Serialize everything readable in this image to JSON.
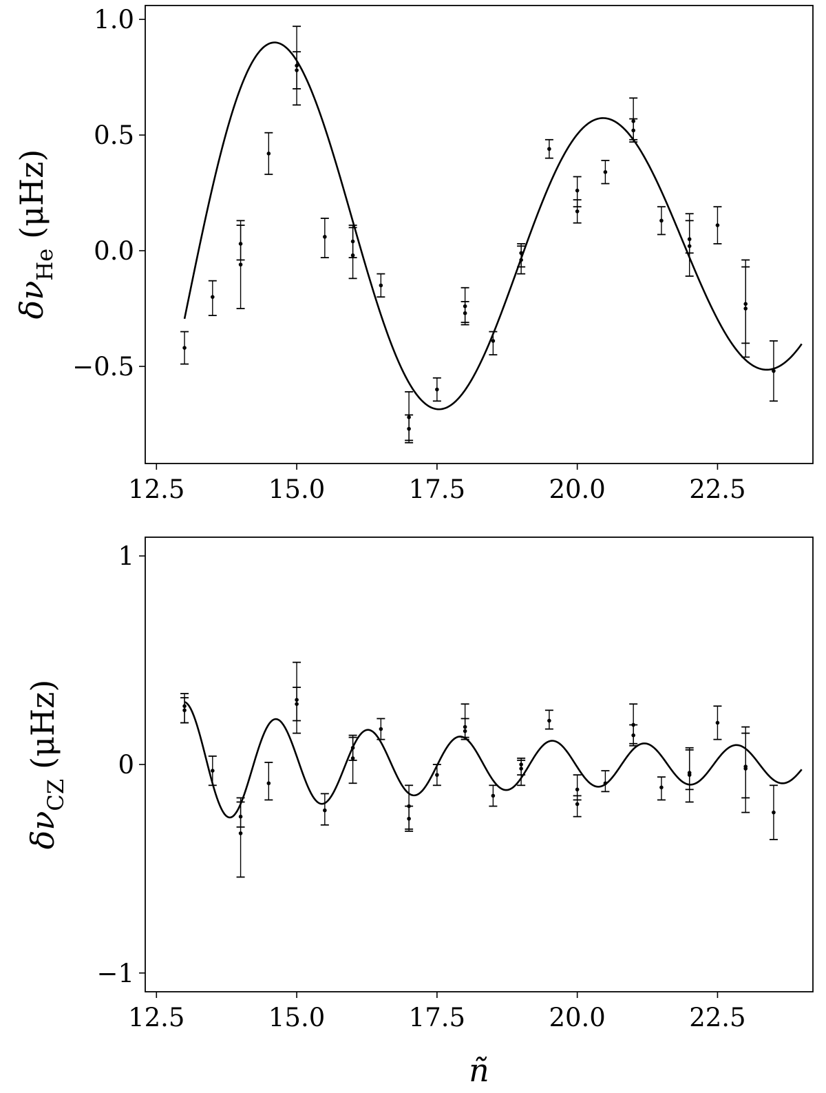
{
  "chart_data": [
    {
      "type": "scatter",
      "panel": "top",
      "xlabel": "",
      "ylabel": "δν_He (μHz)",
      "ylabel_parts": {
        "main": "δν",
        "sub": "He",
        "unit": "(μHz)"
      },
      "xlim": [
        12.3,
        24.2
      ],
      "ylim": [
        -0.92,
        1.06
      ],
      "xticks": [
        12.5,
        15.0,
        17.5,
        20.0,
        22.5
      ],
      "xtick_labels": [
        "12.5",
        "15.0",
        "17.5",
        "20.0",
        "22.5"
      ],
      "yticks": [
        -0.5,
        0.0,
        0.5,
        1.0
      ],
      "ytick_labels": [
        "−0.5",
        "0.0",
        "0.5",
        "1.0"
      ],
      "grid": false,
      "fit": {
        "kind": "line",
        "x_range": [
          13.0,
          24.0
        ]
      },
      "series": [
        {
          "kind": "errorbar",
          "points": [
            {
              "x": 13.0,
              "y": -0.42,
              "lo": -0.49,
              "hi": -0.35
            },
            {
              "x": 13.5,
              "y": -0.2,
              "lo": -0.28,
              "hi": -0.13
            },
            {
              "x": 14.0,
              "y": 0.03,
              "lo": -0.04,
              "hi": 0.13
            },
            {
              "x": 14.0,
              "y": -0.06,
              "lo": -0.25,
              "hi": 0.11
            },
            {
              "x": 14.5,
              "y": 0.42,
              "lo": 0.33,
              "hi": 0.51
            },
            {
              "x": 15.0,
              "y": 0.8,
              "lo": 0.63,
              "hi": 0.97
            },
            {
              "x": 15.0,
              "y": 0.78,
              "lo": 0.7,
              "hi": 0.86
            },
            {
              "x": 15.5,
              "y": 0.06,
              "lo": -0.03,
              "hi": 0.14
            },
            {
              "x": 16.0,
              "y": 0.04,
              "lo": -0.03,
              "hi": 0.11
            },
            {
              "x": 16.0,
              "y": -0.02,
              "lo": -0.12,
              "hi": 0.1
            },
            {
              "x": 16.5,
              "y": -0.15,
              "lo": -0.2,
              "hi": -0.1
            },
            {
              "x": 17.0,
              "y": -0.72,
              "lo": -0.82,
              "hi": -0.61
            },
            {
              "x": 17.0,
              "y": -0.77,
              "lo": -0.83,
              "hi": -0.71
            },
            {
              "x": 17.5,
              "y": -0.6,
              "lo": -0.65,
              "hi": -0.55
            },
            {
              "x": 18.0,
              "y": -0.24,
              "lo": -0.31,
              "hi": -0.16
            },
            {
              "x": 18.0,
              "y": -0.27,
              "lo": -0.32,
              "hi": -0.22
            },
            {
              "x": 18.5,
              "y": -0.39,
              "lo": -0.45,
              "hi": -0.35
            },
            {
              "x": 19.0,
              "y": -0.01,
              "lo": -0.07,
              "hi": 0.03
            },
            {
              "x": 19.0,
              "y": -0.04,
              "lo": -0.1,
              "hi": 0.02
            },
            {
              "x": 19.5,
              "y": 0.44,
              "lo": 0.4,
              "hi": 0.48
            },
            {
              "x": 20.0,
              "y": 0.26,
              "lo": 0.19,
              "hi": 0.32
            },
            {
              "x": 20.0,
              "y": 0.17,
              "lo": 0.12,
              "hi": 0.22
            },
            {
              "x": 20.5,
              "y": 0.34,
              "lo": 0.29,
              "hi": 0.39
            },
            {
              "x": 21.0,
              "y": 0.56,
              "lo": 0.48,
              "hi": 0.66
            },
            {
              "x": 21.0,
              "y": 0.52,
              "lo": 0.47,
              "hi": 0.57
            },
            {
              "x": 21.5,
              "y": 0.13,
              "lo": 0.07,
              "hi": 0.19
            },
            {
              "x": 22.0,
              "y": 0.05,
              "lo": -0.01,
              "hi": 0.16
            },
            {
              "x": 22.0,
              "y": 0.02,
              "lo": -0.11,
              "hi": 0.13
            },
            {
              "x": 22.5,
              "y": 0.11,
              "lo": 0.03,
              "hi": 0.19
            },
            {
              "x": 23.0,
              "y": -0.23,
              "lo": -0.4,
              "hi": -0.04
            },
            {
              "x": 23.0,
              "y": -0.25,
              "lo": -0.46,
              "hi": -0.07
            },
            {
              "x": 23.5,
              "y": -0.52,
              "lo": -0.65,
              "hi": -0.39
            }
          ]
        }
      ]
    },
    {
      "type": "scatter",
      "panel": "bottom",
      "xlabel": "ñ",
      "ylabel": "δν_CZ (μHz)",
      "ylabel_parts": {
        "main": "δν",
        "sub": "CZ",
        "unit": "(μHz)"
      },
      "xlim": [
        12.3,
        24.2
      ],
      "ylim": [
        -1.09,
        1.09
      ],
      "xticks": [
        12.5,
        15.0,
        17.5,
        20.0,
        22.5
      ],
      "xtick_labels": [
        "12.5",
        "15.0",
        "17.5",
        "20.0",
        "22.5"
      ],
      "yticks": [
        -1,
        0,
        1
      ],
      "ytick_labels": [
        "−1",
        "0",
        "1"
      ],
      "grid": false,
      "fit": {
        "kind": "line",
        "x_range": [
          13.0,
          24.0
        ]
      },
      "series": [
        {
          "kind": "errorbar",
          "points": [
            {
              "x": 13.0,
              "y": 0.28,
              "lo": 0.2,
              "hi": 0.34
            },
            {
              "x": 13.0,
              "y": 0.26,
              "lo": 0.2,
              "hi": 0.32
            },
            {
              "x": 13.5,
              "y": -0.03,
              "lo": -0.1,
              "hi": 0.04
            },
            {
              "x": 14.0,
              "y": -0.25,
              "lo": -0.3,
              "hi": -0.16
            },
            {
              "x": 14.0,
              "y": -0.33,
              "lo": -0.54,
              "hi": -0.18
            },
            {
              "x": 14.5,
              "y": -0.09,
              "lo": -0.17,
              "hi": 0.01
            },
            {
              "x": 15.0,
              "y": 0.31,
              "lo": 0.15,
              "hi": 0.49
            },
            {
              "x": 15.0,
              "y": 0.29,
              "lo": 0.21,
              "hi": 0.37
            },
            {
              "x": 15.5,
              "y": -0.22,
              "lo": -0.29,
              "hi": -0.14
            },
            {
              "x": 16.0,
              "y": 0.08,
              "lo": 0.02,
              "hi": 0.14
            },
            {
              "x": 16.0,
              "y": 0.03,
              "lo": -0.09,
              "hi": 0.13
            },
            {
              "x": 16.5,
              "y": 0.17,
              "lo": 0.12,
              "hi": 0.22
            },
            {
              "x": 17.0,
              "y": -0.2,
              "lo": -0.31,
              "hi": -0.1
            },
            {
              "x": 17.0,
              "y": -0.26,
              "lo": -0.32,
              "hi": -0.2
            },
            {
              "x": 17.5,
              "y": -0.05,
              "lo": -0.1,
              "hi": 0.0
            },
            {
              "x": 18.0,
              "y": 0.18,
              "lo": 0.12,
              "hi": 0.29
            },
            {
              "x": 18.0,
              "y": 0.16,
              "lo": 0.13,
              "hi": 0.22
            },
            {
              "x": 18.5,
              "y": -0.15,
              "lo": -0.2,
              "hi": -0.1
            },
            {
              "x": 19.0,
              "y": 0.0,
              "lo": -0.05,
              "hi": 0.03
            },
            {
              "x": 19.0,
              "y": -0.02,
              "lo": -0.1,
              "hi": 0.02
            },
            {
              "x": 19.5,
              "y": 0.21,
              "lo": 0.17,
              "hi": 0.26
            },
            {
              "x": 20.0,
              "y": -0.12,
              "lo": -0.17,
              "hi": -0.05
            },
            {
              "x": 20.0,
              "y": -0.19,
              "lo": -0.25,
              "hi": -0.15
            },
            {
              "x": 20.5,
              "y": -0.09,
              "lo": -0.13,
              "hi": -0.03
            },
            {
              "x": 21.0,
              "y": 0.19,
              "lo": 0.09,
              "hi": 0.29
            },
            {
              "x": 21.0,
              "y": 0.14,
              "lo": 0.1,
              "hi": 0.19
            },
            {
              "x": 21.5,
              "y": -0.11,
              "lo": -0.17,
              "hi": -0.06
            },
            {
              "x": 22.0,
              "y": -0.04,
              "lo": -0.12,
              "hi": 0.08
            },
            {
              "x": 22.0,
              "y": -0.05,
              "lo": -0.18,
              "hi": 0.07
            },
            {
              "x": 22.5,
              "y": 0.2,
              "lo": 0.12,
              "hi": 0.28
            },
            {
              "x": 23.0,
              "y": -0.01,
              "lo": -0.16,
              "hi": 0.15
            },
            {
              "x": 23.0,
              "y": -0.02,
              "lo": -0.23,
              "hi": 0.18
            },
            {
              "x": 23.5,
              "y": -0.23,
              "lo": -0.36,
              "hi": -0.1
            }
          ]
        }
      ]
    }
  ]
}
